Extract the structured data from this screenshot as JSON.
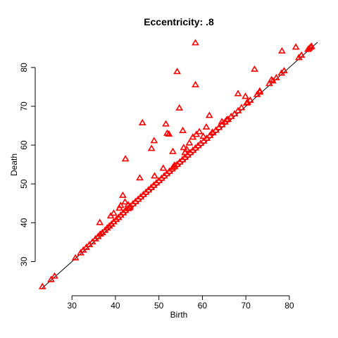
{
  "chart_data": {
    "type": "scatter",
    "title": "Eccentricity: .8",
    "xlabel": "Birth",
    "ylabel": "Death",
    "xlim": [
      23,
      86.5
    ],
    "ylim": [
      23,
      86.5
    ],
    "x_ticks": [
      30,
      40,
      50,
      60,
      70,
      80
    ],
    "y_ticks": [
      30,
      40,
      50,
      60,
      70,
      80
    ],
    "grid": false,
    "legend": "none",
    "marker": "triangle-open",
    "marker_color": "#ff0000",
    "diagonal_line": true,
    "diagonal_color": "#000000",
    "points": [
      [
        23.2,
        23.5
      ],
      [
        25.2,
        25.3
      ],
      [
        26.0,
        26.2
      ],
      [
        30.8,
        30.9
      ],
      [
        32.0,
        32.2
      ],
      [
        32.6,
        32.9
      ],
      [
        33.3,
        33.6
      ],
      [
        34.0,
        34.3
      ],
      [
        34.7,
        35.0
      ],
      [
        35.4,
        35.8
      ],
      [
        36.0,
        36.4
      ],
      [
        36.5,
        37.0
      ],
      [
        37.0,
        37.4
      ],
      [
        37.6,
        38.0
      ],
      [
        38.1,
        38.6
      ],
      [
        38.6,
        39.1
      ],
      [
        39.1,
        39.6
      ],
      [
        39.6,
        40.2
      ],
      [
        40.2,
        40.8
      ],
      [
        40.7,
        41.3
      ],
      [
        41.2,
        41.9
      ],
      [
        41.8,
        42.5
      ],
      [
        42.3,
        43.1
      ],
      [
        42.9,
        43.6
      ],
      [
        43.4,
        44.2
      ],
      [
        44.0,
        44.8
      ],
      [
        44.6,
        45.4
      ],
      [
        45.2,
        46.0
      ],
      [
        45.8,
        46.6
      ],
      [
        46.4,
        47.2
      ],
      [
        47.0,
        47.8
      ],
      [
        47.6,
        48.4
      ],
      [
        48.2,
        49.0
      ],
      [
        48.8,
        49.6
      ],
      [
        49.4,
        50.2
      ],
      [
        50.0,
        50.8
      ],
      [
        50.6,
        51.4
      ],
      [
        51.2,
        52.0
      ],
      [
        51.8,
        52.6
      ],
      [
        52.4,
        53.2
      ],
      [
        53.0,
        53.8
      ],
      [
        53.6,
        54.4
      ],
      [
        54.2,
        55.0
      ],
      [
        54.8,
        55.6
      ],
      [
        55.4,
        56.2
      ],
      [
        56.0,
        56.8
      ],
      [
        56.6,
        57.4
      ],
      [
        57.2,
        58.0
      ],
      [
        57.8,
        58.6
      ],
      [
        58.4,
        59.2
      ],
      [
        59.0,
        59.8
      ],
      [
        59.6,
        60.4
      ],
      [
        60.3,
        61.0
      ],
      [
        61.0,
        61.7
      ],
      [
        61.7,
        62.4
      ],
      [
        62.4,
        63.1
      ],
      [
        63.1,
        63.8
      ],
      [
        63.8,
        64.5
      ],
      [
        64.5,
        65.2
      ],
      [
        65.2,
        65.9
      ],
      [
        65.9,
        66.6
      ],
      [
        66.6,
        67.3
      ],
      [
        67.4,
        68.0
      ],
      [
        68.2,
        68.8
      ],
      [
        69.0,
        69.6
      ],
      [
        70.2,
        70.8
      ],
      [
        71.0,
        71.5
      ],
      [
        72.6,
        73.0
      ],
      [
        73.2,
        73.6
      ],
      [
        75.4,
        75.8
      ],
      [
        76.2,
        76.5
      ],
      [
        77.0,
        77.3
      ],
      [
        78.2,
        78.5
      ],
      [
        78.8,
        79.1
      ],
      [
        82.2,
        82.5
      ],
      [
        82.8,
        83.1
      ],
      [
        84.3,
        84.6
      ],
      [
        84.6,
        84.9
      ],
      [
        84.9,
        85.2
      ],
      [
        85.1,
        85.4
      ],
      [
        36.4,
        40.0
      ],
      [
        38.9,
        41.7
      ],
      [
        39.6,
        42.4
      ],
      [
        40.9,
        43.7
      ],
      [
        41.2,
        44.4
      ],
      [
        41.7,
        47.0
      ],
      [
        42.2,
        45.3
      ],
      [
        42.9,
        44.6
      ],
      [
        43.3,
        43.8
      ],
      [
        45.6,
        51.5
      ],
      [
        46.2,
        65.7
      ],
      [
        42.3,
        56.4
      ],
      [
        48.3,
        59.1
      ],
      [
        48.9,
        61.1
      ],
      [
        49.0,
        52.0
      ],
      [
        51.6,
        65.4
      ],
      [
        51.9,
        63.0
      ],
      [
        52.3,
        62.8
      ],
      [
        53.2,
        58.3
      ],
      [
        53.2,
        54.2
      ],
      [
        53.6,
        54.8
      ],
      [
        54.2,
        78.9
      ],
      [
        54.7,
        69.5
      ],
      [
        55.5,
        63.7
      ],
      [
        55.7,
        59.3
      ],
      [
        56.4,
        58.9
      ],
      [
        57.0,
        60.5
      ],
      [
        58.4,
        86.3
      ],
      [
        58.4,
        75.5
      ],
      [
        58.6,
        62.7
      ],
      [
        59.3,
        63.4
      ],
      [
        60.9,
        64.6
      ],
      [
        61.6,
        67.6
      ],
      [
        62.3,
        63.3
      ],
      [
        64.5,
        66.0
      ],
      [
        65.6,
        66.5
      ],
      [
        68.2,
        73.2
      ],
      [
        69.9,
        72.5
      ],
      [
        70.4,
        71.0
      ],
      [
        72.0,
        79.5
      ],
      [
        73.2,
        73.9
      ],
      [
        75.9,
        76.8
      ],
      [
        78.3,
        84.2
      ],
      [
        81.5,
        85.2
      ],
      [
        51.0,
        54.0
      ],
      [
        56.0,
        58.0
      ],
      [
        60.2,
        62.2
      ],
      [
        57.8,
        62.0
      ]
    ]
  }
}
